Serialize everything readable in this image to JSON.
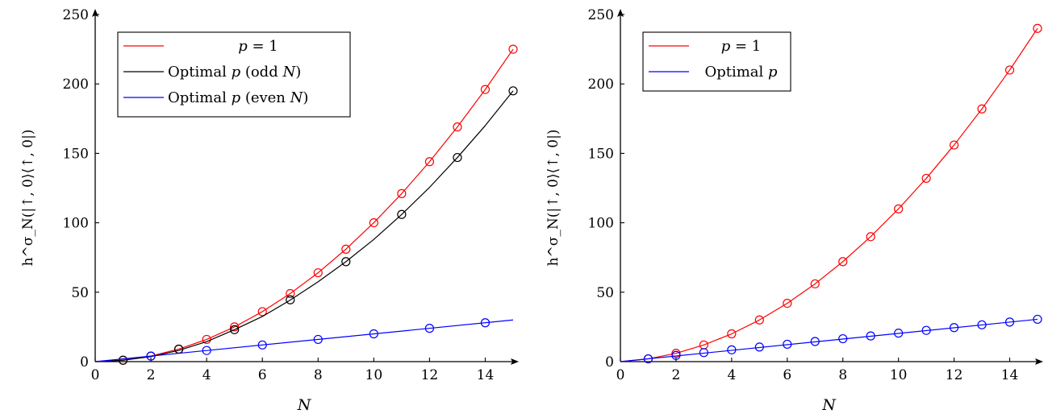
{
  "chart_data": [
    {
      "id": "left",
      "type": "line",
      "xlabel": "N",
      "ylabel": "h^σ_N(|↑, 0⟩⟨↑, 0|)",
      "xlim": [
        0,
        15
      ],
      "ylim": [
        0,
        250
      ],
      "xticks": [
        0,
        2,
        4,
        6,
        8,
        10,
        12,
        14
      ],
      "yticks": [
        0,
        50,
        100,
        150,
        200,
        250
      ],
      "legend_position": "top-left",
      "series": [
        {
          "name": "p = 1",
          "color": "#ff0000",
          "curve_x": [
            0,
            1,
            2,
            3,
            4,
            5,
            6,
            7,
            8,
            9,
            10,
            11,
            12,
            13,
            14,
            15
          ],
          "curve_y": [
            0,
            1,
            4,
            9,
            16,
            25,
            36,
            49,
            64,
            81,
            100,
            121,
            144,
            169,
            196,
            225
          ],
          "marker_x": [
            1,
            2,
            3,
            4,
            5,
            6,
            7,
            8,
            9,
            10,
            11,
            12,
            13,
            14,
            15
          ],
          "marker_y": [
            1,
            4,
            9,
            16,
            25,
            36,
            49,
            64,
            81,
            100,
            121,
            144,
            169,
            196,
            225
          ]
        },
        {
          "name": "Optimal p (odd N)",
          "color": "#000000",
          "curve_x": [
            0,
            1,
            2,
            3,
            4,
            5,
            6,
            7,
            8,
            9,
            10,
            11,
            12,
            13,
            14,
            15
          ],
          "curve_y": [
            0,
            1,
            3.6,
            8.1,
            14.4,
            23,
            32.5,
            44.3,
            57.5,
            72,
            88,
            106,
            125.5,
            147,
            170,
            195
          ],
          "marker_x": [
            1,
            3,
            5,
            7,
            9,
            11,
            13,
            15
          ],
          "marker_y": [
            1,
            9,
            23,
            44.5,
            72,
            106,
            147,
            195
          ]
        },
        {
          "name": "Optimal p (even N)",
          "color": "#0000ff",
          "curve_x": [
            0,
            15
          ],
          "curve_y": [
            0,
            30
          ],
          "marker_x": [
            2,
            4,
            6,
            8,
            10,
            12,
            14
          ],
          "marker_y": [
            4,
            8,
            12,
            16,
            20,
            24,
            28
          ]
        }
      ]
    },
    {
      "id": "right",
      "type": "line",
      "xlabel": "N",
      "ylabel": "h^σ_N(|↑, 0⟩⟨↑, 0|)",
      "xlim": [
        0,
        15
      ],
      "ylim": [
        0,
        250
      ],
      "xticks": [
        0,
        2,
        4,
        6,
        8,
        10,
        12,
        14
      ],
      "yticks": [
        0,
        50,
        100,
        150,
        200,
        250
      ],
      "legend_position": "top-left",
      "series": [
        {
          "name": "p = 1",
          "color": "#ff0000",
          "curve_x": [
            0,
            1,
            2,
            3,
            4,
            5,
            6,
            7,
            8,
            9,
            10,
            11,
            12,
            13,
            14,
            15
          ],
          "curve_y": [
            0,
            2,
            6,
            12,
            20,
            30,
            42,
            56,
            72,
            90,
            110,
            132,
            156,
            182,
            210,
            240
          ],
          "marker_x": [
            1,
            2,
            3,
            4,
            5,
            6,
            7,
            8,
            9,
            10,
            11,
            12,
            13,
            14,
            15
          ],
          "marker_y": [
            2,
            6,
            12,
            20,
            30,
            42,
            56,
            72,
            90,
            110,
            132,
            156,
            182,
            210,
            240
          ]
        },
        {
          "name": "Optimal p",
          "color": "#0000ff",
          "curve_x": [
            0,
            15
          ],
          "curve_y": [
            0,
            30.5
          ],
          "marker_x": [
            1,
            2,
            3,
            4,
            5,
            6,
            7,
            8,
            9,
            10,
            11,
            12,
            13,
            14,
            15
          ],
          "marker_y": [
            2,
            4.5,
            6.5,
            8.5,
            10.5,
            12.5,
            14.5,
            16.5,
            18.5,
            20.5,
            22.5,
            24.5,
            26.5,
            28.5,
            30.5
          ]
        }
      ]
    }
  ]
}
